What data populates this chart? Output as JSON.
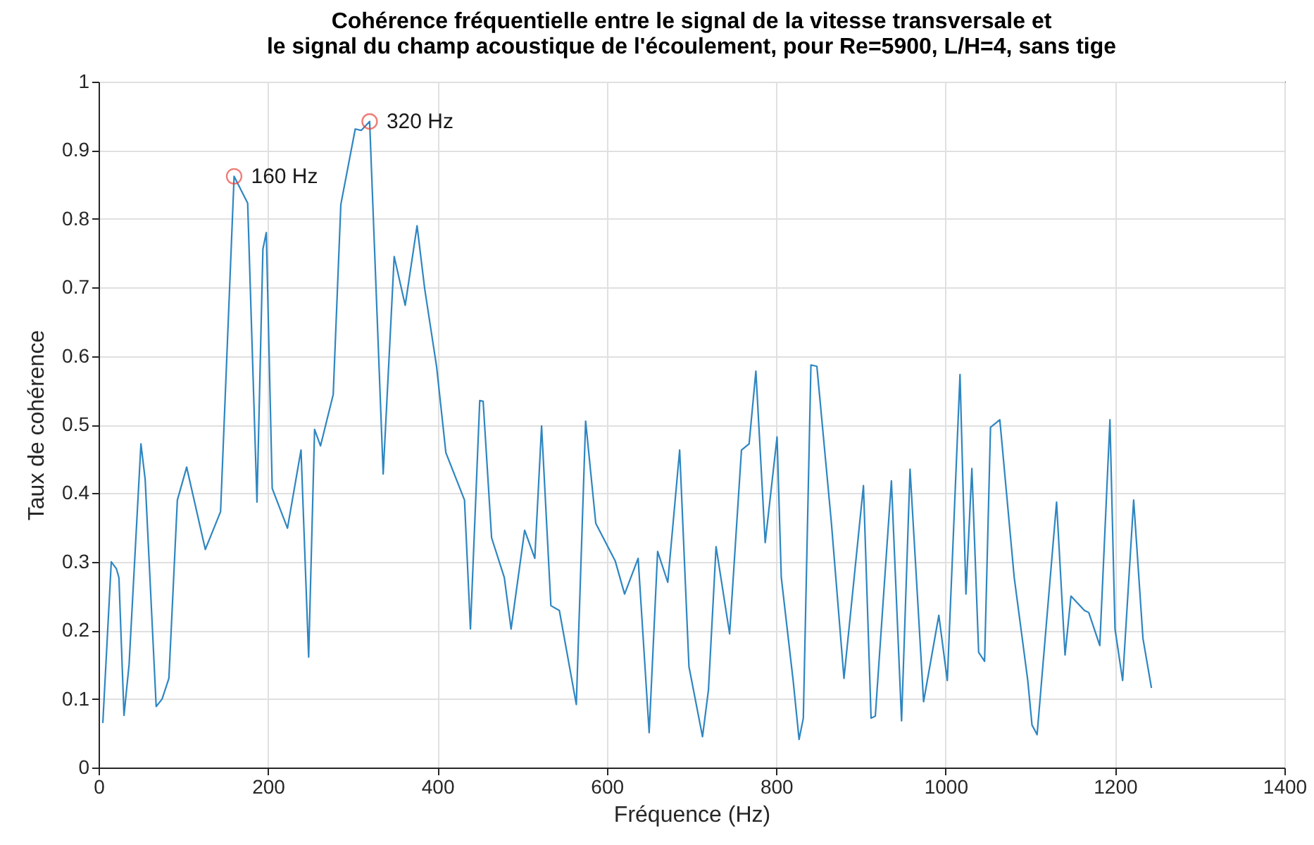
{
  "chart_data": {
    "type": "line",
    "title": "Cohérence fréquentielle entre le signal de la vitesse transversale et\nle signal du champ acoustique de l'écoulement, pour Re=5900, L/H=4, sans tige",
    "xlabel": "Fréquence (Hz)",
    "ylabel": "Taux de cohérence",
    "xlim": [
      0,
      1400
    ],
    "xticks": [
      0,
      200,
      400,
      600,
      800,
      1000,
      1200,
      1400
    ],
    "ylim": [
      0,
      1
    ],
    "yticks": [
      0,
      0.1,
      0.2,
      0.3,
      0.4,
      0.5,
      0.6,
      0.7,
      0.8,
      0.9,
      1
    ],
    "grid": true,
    "series": [
      {
        "color": "#2e86c1",
        "x": [
          5,
          15,
          21,
          24,
          30,
          36,
          50,
          55,
          68,
          75,
          83,
          93,
          104,
          126,
          144,
          160,
          176,
          187,
          194,
          198,
          205,
          223,
          239,
          248,
          255,
          262,
          277,
          286,
          303,
          310,
          320,
          336,
          349,
          362,
          376,
          385,
          399,
          410,
          432,
          439,
          450,
          454,
          464,
          479,
          487,
          503,
          515,
          523,
          534,
          544,
          564,
          575,
          587,
          610,
          621,
          637,
          650,
          660,
          672,
          686,
          697,
          713,
          720,
          729,
          745,
          759,
          768,
          776,
          787,
          801,
          806,
          820,
          827,
          832,
          841,
          848,
          865,
          880,
          903,
          912,
          917,
          936,
          948,
          958,
          974,
          992,
          1002,
          1017,
          1024,
          1031,
          1039,
          1046,
          1053,
          1064,
          1081,
          1097,
          1102,
          1108,
          1131,
          1141,
          1148,
          1164,
          1169,
          1182,
          1194,
          1200,
          1209,
          1222,
          1233,
          1243
        ],
        "values": [
          0.065,
          0.3,
          0.29,
          0.277,
          0.076,
          0.15,
          0.472,
          0.42,
          0.089,
          0.1,
          0.13,
          0.39,
          0.438,
          0.318,
          0.373,
          0.862,
          0.823,
          0.387,
          0.756,
          0.78,
          0.407,
          0.349,
          0.463,
          0.161,
          0.493,
          0.469,
          0.544,
          0.821,
          0.931,
          0.929,
          0.942,
          0.428,
          0.745,
          0.674,
          0.79,
          0.698,
          0.585,
          0.459,
          0.39,
          0.202,
          0.535,
          0.534,
          0.335,
          0.277,
          0.202,
          0.346,
          0.305,
          0.498,
          0.236,
          0.229,
          0.092,
          0.505,
          0.356,
          0.301,
          0.253,
          0.305,
          0.051,
          0.315,
          0.27,
          0.463,
          0.147,
          0.045,
          0.113,
          0.322,
          0.195,
          0.463,
          0.472,
          0.578,
          0.328,
          0.482,
          0.277,
          0.127,
          0.041,
          0.072,
          0.587,
          0.585,
          0.359,
          0.13,
          0.411,
          0.072,
          0.075,
          0.418,
          0.068,
          0.435,
          0.096,
          0.222,
          0.127,
          0.573,
          0.253,
          0.436,
          0.168,
          0.155,
          0.496,
          0.507,
          0.277,
          0.127,
          0.062,
          0.048,
          0.387,
          0.164,
          0.25,
          0.229,
          0.226,
          0.178,
          0.507,
          0.202,
          0.127,
          0.39,
          0.188,
          0.116
        ]
      }
    ],
    "annotations": [
      {
        "text": "160 Hz",
        "x": 160,
        "y": 0.862
      },
      {
        "text": "320 Hz",
        "x": 320,
        "y": 0.942
      }
    ]
  }
}
